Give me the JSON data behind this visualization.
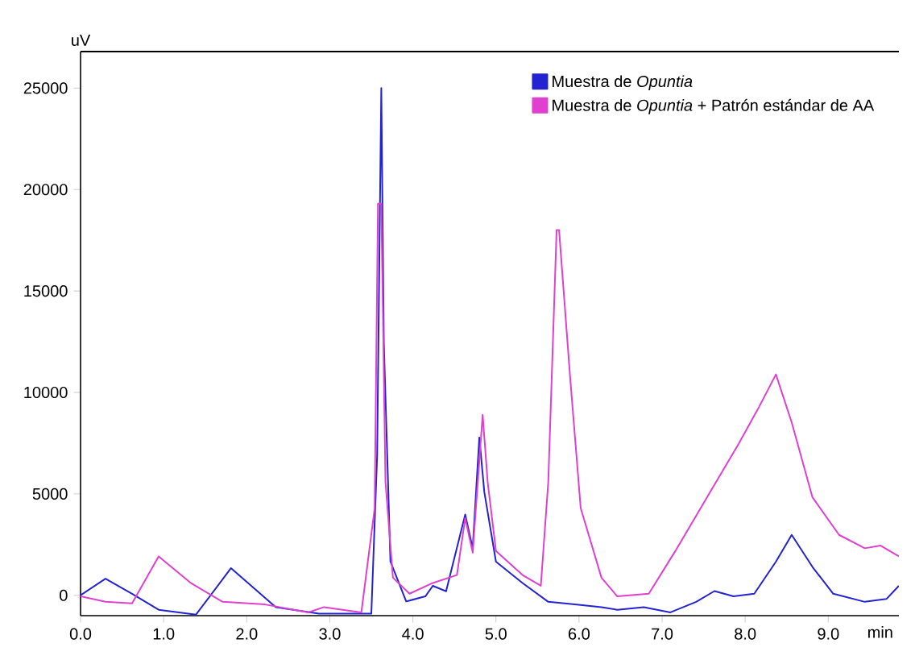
{
  "chart_data": {
    "type": "line",
    "xlabel": "min",
    "ylabel": "uV",
    "xlim": [
      0,
      9.85
    ],
    "ylim": [
      -1000,
      26800
    ],
    "xticks": [
      {
        "value": 0,
        "label": "0.0"
      },
      {
        "value": 1,
        "label": "1.0"
      },
      {
        "value": 2,
        "label": "2.0"
      },
      {
        "value": 3,
        "label": "3.0"
      },
      {
        "value": 4,
        "label": "4.0"
      },
      {
        "value": 5,
        "label": "5.0"
      },
      {
        "value": 6,
        "label": "6.0"
      },
      {
        "value": 7,
        "label": "7.0"
      },
      {
        "value": 8,
        "label": "8.0"
      },
      {
        "value": 9,
        "label": "9.0"
      }
    ],
    "yticks": [
      0,
      5000,
      10000,
      15000,
      20000,
      25000
    ],
    "grid": false,
    "legend": "top right",
    "marker": "none",
    "line_style": "solid",
    "series": [
      {
        "name": "Muestra de *Opuntia*",
        "color": "#2323d2",
        "x": [
          0,
          0.3,
          0.62,
          0.94,
          1.39,
          1.81,
          2.35,
          2.87,
          3.5,
          3.57,
          3.62,
          3.65,
          3.73,
          3.92,
          4.15,
          4.24,
          4.4,
          4.63,
          4.72,
          4.8,
          4.86,
          5.0,
          5.32,
          5.63,
          5.95,
          6.27,
          6.46,
          6.78,
          7.1,
          7.41,
          7.63,
          7.86,
          8.11,
          8.37,
          8.56,
          8.81,
          9.06,
          9.44,
          9.7,
          9.85
        ],
        "values": [
          0,
          820,
          80,
          -710,
          -950,
          1340,
          -580,
          -900,
          -900,
          6900,
          25000,
          12500,
          1660,
          -300,
          -50,
          470,
          200,
          3980,
          2320,
          7780,
          5090,
          1660,
          610,
          -320,
          -450,
          -580,
          -710,
          -580,
          -840,
          -320,
          210,
          -50,
          80,
          1660,
          2980,
          1400,
          80,
          -320,
          -180,
          470
        ]
      },
      {
        "name": "Muestra de *Opuntia* + Patrón estándar de AA",
        "color": "#e040d0",
        "x": [
          0,
          0.3,
          0.62,
          0.94,
          1.33,
          1.71,
          2.22,
          2.74,
          2.93,
          3.38,
          3.54,
          3.58,
          3.62,
          3.67,
          3.76,
          3.96,
          4.24,
          4.53,
          4.63,
          4.72,
          4.84,
          4.9,
          5.0,
          5.32,
          5.54,
          5.63,
          5.73,
          5.76,
          5.89,
          6.02,
          6.27,
          6.46,
          6.84,
          7.16,
          7.54,
          7.92,
          8.17,
          8.37,
          8.56,
          8.81,
          9.13,
          9.44,
          9.63,
          9.85
        ],
        "values": [
          -50,
          -320,
          -400,
          1920,
          600,
          -320,
          -450,
          -840,
          -580,
          -840,
          4300,
          19300,
          19300,
          5600,
          870,
          80,
          610,
          1000,
          3800,
          2100,
          8900,
          5600,
          2190,
          1000,
          470,
          5600,
          18000,
          18000,
          10900,
          4300,
          870,
          -50,
          80,
          2190,
          4830,
          7460,
          9310,
          10890,
          8520,
          4830,
          2980,
          2320,
          2450,
          1920
        ]
      }
    ]
  }
}
